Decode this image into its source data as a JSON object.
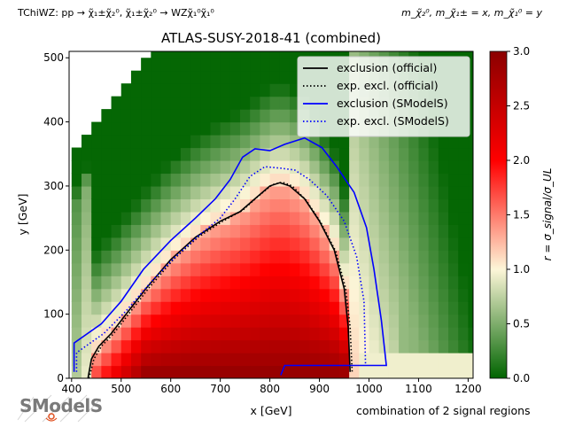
{
  "header": {
    "process": "TChiWZ: pp → χ̃₁±χ̃₂⁰, χ̃₁±χ̃₂⁰ → WZχ̃₁⁰χ̃₁⁰",
    "mass_assignment": "m_χ̃₂⁰, m_χ̃₁± = x, m_χ̃₁⁰ = y"
  },
  "footer": {
    "note": "combination of 2 signal regions",
    "logo": "SModelS"
  },
  "chart_data": {
    "type": "heatmap",
    "title": "ATLAS-SUSY-2018-41 (combined)",
    "xlabel": "x [GeV]",
    "ylabel": "y [GeV]",
    "xlim": [
      395,
      1210
    ],
    "ylim": [
      0,
      510
    ],
    "xticks": [
      400,
      500,
      600,
      700,
      800,
      900,
      1000,
      1100,
      1200
    ],
    "yticks": [
      0,
      100,
      200,
      300,
      400,
      500
    ],
    "grid": false,
    "legend_position": "top-right",
    "colorbar": {
      "label": "r = σ_signal/σ_UL",
      "range": [
        0.0,
        3.0
      ],
      "ticks": [
        0.0,
        0.5,
        1.0,
        1.5,
        2.0,
        2.5,
        3.0
      ],
      "colors": [
        "#006400",
        "#fdf6d8",
        "#ff0000",
        "#8b0000"
      ]
    },
    "heatmap_grid": {
      "x_start": 400,
      "x_end": 1210,
      "x_step": 20,
      "y_step": 20,
      "diagonal_offset": 0
    },
    "series": [
      {
        "name": "exclusion (official)",
        "color": "#000000",
        "style": "solid",
        "points": [
          [
            433,
            0
          ],
          [
            440,
            30
          ],
          [
            455,
            50
          ],
          [
            480,
            70
          ],
          [
            510,
            100
          ],
          [
            550,
            140
          ],
          [
            600,
            185
          ],
          [
            650,
            220
          ],
          [
            700,
            245
          ],
          [
            740,
            260
          ],
          [
            770,
            280
          ],
          [
            800,
            300
          ],
          [
            820,
            305
          ],
          [
            840,
            300
          ],
          [
            870,
            280
          ],
          [
            900,
            245
          ],
          [
            930,
            200
          ],
          [
            950,
            140
          ],
          [
            958,
            80
          ],
          [
            962,
            10
          ]
        ]
      },
      {
        "name": "exp. excl. (official)",
        "color": "#000000",
        "style": "dotted",
        "points": [
          [
            435,
            0
          ],
          [
            445,
            30
          ],
          [
            460,
            50
          ],
          [
            485,
            70
          ],
          [
            515,
            100
          ],
          [
            555,
            140
          ],
          [
            605,
            185
          ],
          [
            655,
            220
          ],
          [
            705,
            245
          ],
          [
            745,
            262
          ],
          [
            775,
            283
          ],
          [
            805,
            302
          ],
          [
            825,
            306
          ],
          [
            845,
            300
          ],
          [
            873,
            278
          ],
          [
            903,
            243
          ],
          [
            933,
            198
          ],
          [
            953,
            140
          ],
          [
            962,
            80
          ],
          [
            966,
            10
          ]
        ]
      },
      {
        "name": "exclusion (SModelS)",
        "color": "#0000ff",
        "style": "solid",
        "points": [
          [
            405,
            10
          ],
          [
            405,
            55
          ],
          [
            460,
            85
          ],
          [
            500,
            120
          ],
          [
            545,
            170
          ],
          [
            600,
            215
          ],
          [
            650,
            250
          ],
          [
            690,
            280
          ],
          [
            720,
            310
          ],
          [
            745,
            345
          ],
          [
            770,
            358
          ],
          [
            800,
            355
          ],
          [
            830,
            365
          ],
          [
            870,
            375
          ],
          [
            905,
            360
          ],
          [
            935,
            330
          ],
          [
            970,
            290
          ],
          [
            995,
            235
          ],
          [
            1010,
            170
          ],
          [
            1025,
            90
          ],
          [
            1035,
            20
          ],
          [
            920,
            20
          ],
          [
            830,
            20
          ],
          [
            822,
            5
          ]
        ]
      },
      {
        "name": "exp. excl. (SModelS)",
        "color": "#0000ff",
        "style": "dotted",
        "points": [
          [
            410,
            10
          ],
          [
            410,
            40
          ],
          [
            465,
            70
          ],
          [
            510,
            105
          ],
          [
            560,
            150
          ],
          [
            610,
            190
          ],
          [
            660,
            225
          ],
          [
            700,
            250
          ],
          [
            730,
            280
          ],
          [
            760,
            315
          ],
          [
            790,
            330
          ],
          [
            820,
            328
          ],
          [
            850,
            325
          ],
          [
            880,
            310
          ],
          [
            915,
            285
          ],
          [
            950,
            245
          ],
          [
            975,
            190
          ],
          [
            990,
            120
          ],
          [
            993,
            20
          ]
        ]
      }
    ]
  }
}
